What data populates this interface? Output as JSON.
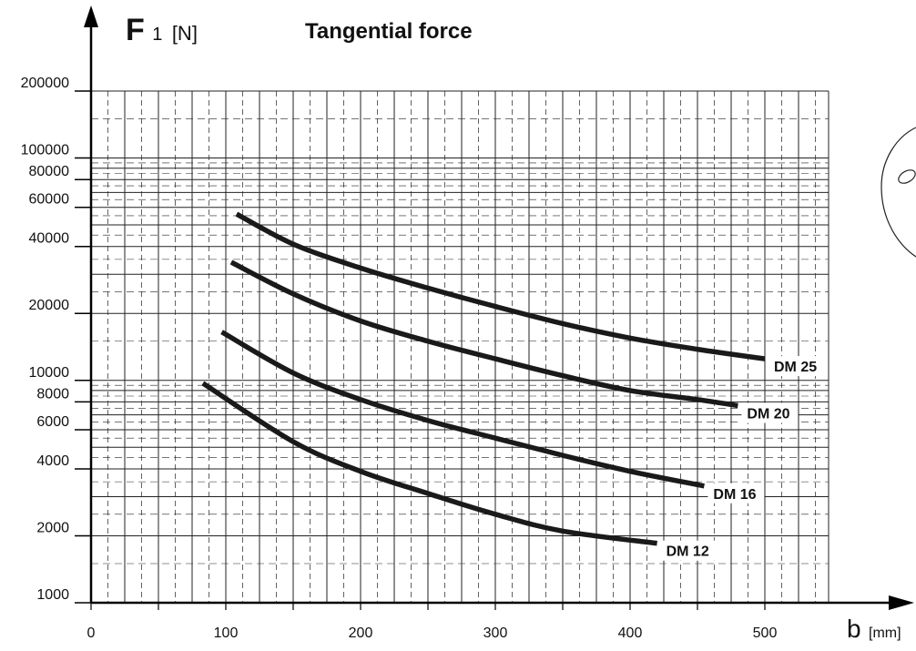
{
  "chart_data": {
    "type": "line",
    "title": "Tangential force",
    "ylabel": {
      "symbol": "F",
      "subscript": "1",
      "unit": "[N]"
    },
    "xlabel": {
      "symbol": "b",
      "unit": "[mm]"
    },
    "xscale": "linear",
    "yscale": "log",
    "xlim": [
      0,
      550
    ],
    "ylim": [
      1000,
      200000
    ],
    "x_ticks": [
      "0",
      "100",
      "200",
      "300",
      "400",
      "500"
    ],
    "y_ticks": [
      {
        "value": 1000,
        "label": "1000"
      },
      {
        "value": 2000,
        "label": "2000"
      },
      {
        "value": 4000,
        "label": "4000"
      },
      {
        "value": 6000,
        "label": "6000"
      },
      {
        "value": 8000,
        "label": "8000"
      },
      {
        "value": 10000,
        "label": "10000"
      },
      {
        "value": 20000,
        "label": "20000"
      },
      {
        "value": 40000,
        "label": "40000"
      },
      {
        "value": 60000,
        "label": "60000"
      },
      {
        "value": 80000,
        "label": "80000"
      },
      {
        "value": 100000,
        "label": "100000"
      },
      {
        "value": 200000,
        "label": "200000"
      }
    ],
    "grid": true,
    "series": [
      {
        "name": "DM 25",
        "x": [
          108,
          150,
          200,
          250,
          300,
          350,
          400,
          450,
          500
        ],
        "y": [
          56000,
          41000,
          32000,
          26000,
          21500,
          18000,
          15500,
          13800,
          12500
        ]
      },
      {
        "name": "DM 20",
        "x": [
          104,
          150,
          200,
          250,
          300,
          350,
          400,
          450,
          480
        ],
        "y": [
          34000,
          24500,
          18500,
          15000,
          12500,
          10500,
          9000,
          8200,
          7700
        ]
      },
      {
        "name": "DM 16",
        "x": [
          97,
          150,
          200,
          250,
          300,
          350,
          400,
          455
        ],
        "y": [
          16500,
          10800,
          8200,
          6600,
          5500,
          4600,
          3900,
          3350
        ]
      },
      {
        "name": "DM 12",
        "x": [
          83,
          150,
          200,
          250,
          300,
          350,
          420
        ],
        "y": [
          9700,
          5300,
          3900,
          3100,
          2500,
          2100,
          1850
        ]
      }
    ]
  },
  "colors": {
    "line": "#1a1a1a",
    "grid": "#222222",
    "background": "#ffffff"
  },
  "decor": {
    "right_edge_shape": "partial-circle-outline"
  }
}
